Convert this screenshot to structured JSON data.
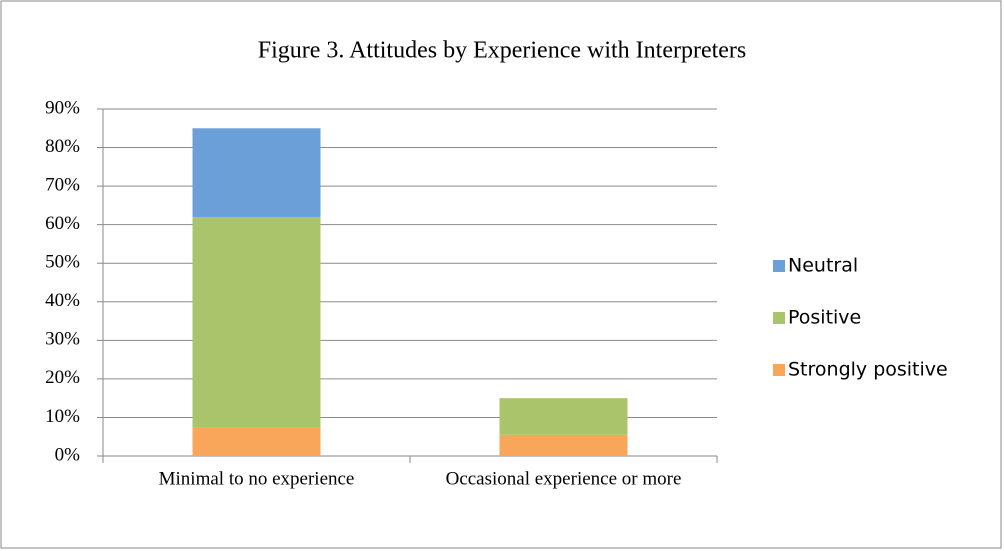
{
  "chart_data": {
    "type": "stacked_bar",
    "title": "Figure 3. Attitudes by Experience with Interpreters",
    "categories": [
      "Minimal to no experience",
      "Occasional experience or more"
    ],
    "series": [
      {
        "name": "Strongly positive",
        "color": "#f9a65a",
        "values": [
          7.5,
          5.5
        ]
      },
      {
        "name": "Positive",
        "color": "#a9c46a",
        "values": [
          54.5,
          9.5
        ]
      },
      {
        "name": "Neutral",
        "color": "#6a9fd8",
        "values": [
          23,
          null
        ]
      }
    ],
    "ylim": [
      0,
      90
    ],
    "yticks": [
      {
        "value": 0,
        "label": "0%"
      },
      {
        "value": 10,
        "label": "10%"
      },
      {
        "value": 20,
        "label": "20%"
      },
      {
        "value": 30,
        "label": "30%"
      },
      {
        "value": 40,
        "label": "40%"
      },
      {
        "value": 50,
        "label": "50%"
      },
      {
        "value": 60,
        "label": "60%"
      },
      {
        "value": 70,
        "label": "70%"
      },
      {
        "value": 80,
        "label": "80%"
      },
      {
        "value": 90,
        "label": "90%"
      }
    ],
    "grid": true,
    "legend": "right"
  }
}
